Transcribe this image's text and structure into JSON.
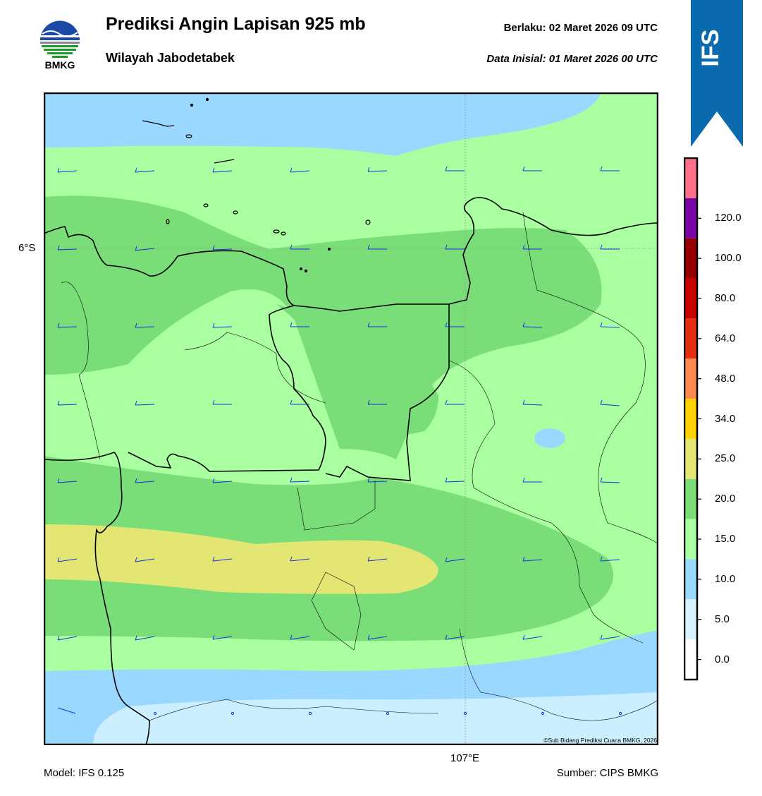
{
  "header": {
    "title": "Prediksi Angin Lapisan 925 mb",
    "subtitle": "Wilayah Jabodetabek",
    "valid_label": "Berlaku:  02 Maret 2026 09 UTC",
    "init_label": "Data Inisial:  01 Maret 2026 00 UTC"
  },
  "logo": {
    "text": "BMKG",
    "icon": "bmkg-logo-icon"
  },
  "ribbon": {
    "text": "IFS",
    "color": "#0a6aad"
  },
  "axes": {
    "lat_label": "6°S",
    "lon_label": "107°E"
  },
  "footer": {
    "model": "Model: IFS 0.125",
    "source": "Sumber: CIPS BMKG",
    "credit": "©Sub Bidang Prediksi Cuaca BMKG, 2026"
  },
  "colorbar": {
    "levels": [
      {
        "label": "0.0",
        "color": "#ffffff"
      },
      {
        "label": "5.0",
        "color": "#d6f2ff"
      },
      {
        "label": "10.0",
        "color": "#9ad8ff"
      },
      {
        "label": "15.0",
        "color": "#aaffa0"
      },
      {
        "label": "20.0",
        "color": "#7ade78"
      },
      {
        "label": "25.0",
        "color": "#e4e674"
      },
      {
        "label": "34.0",
        "color": "#ffd200"
      },
      {
        "label": "48.0",
        "color": "#ff8850"
      },
      {
        "label": "64.0",
        "color": "#e42e10"
      },
      {
        "label": "80.0",
        "color": "#c80000"
      },
      {
        "label": "100.0",
        "color": "#960000"
      },
      {
        "label": "120.0",
        "color": "#7a06a8"
      }
    ],
    "top_color": "#ff6f8a"
  },
  "map_colors": {
    "calm": "#ccefff",
    "light_blue": "#9ad8ff",
    "pale_green": "#aaffa0",
    "green": "#7ade78",
    "yellow": "#e4e674",
    "barb": "#1530e0"
  }
}
